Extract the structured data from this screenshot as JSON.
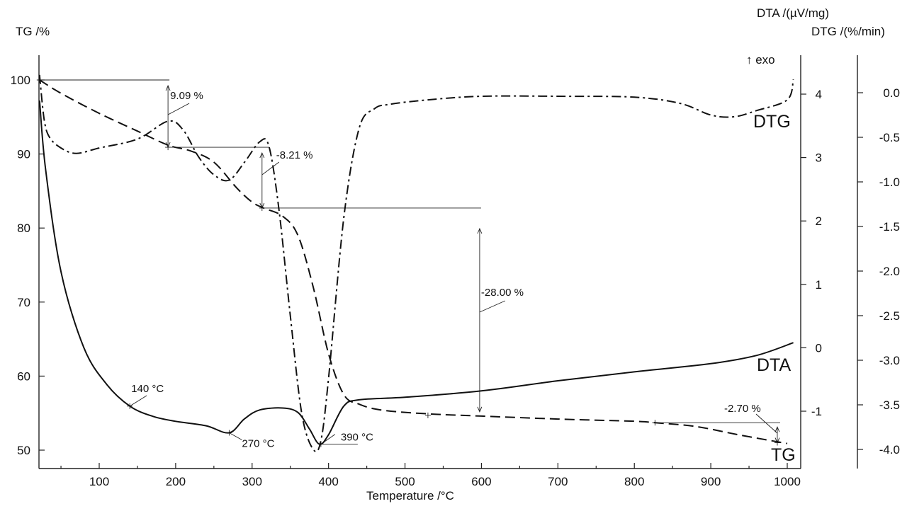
{
  "chart_data": {
    "type": "line",
    "xlabel": "Temperature /°C",
    "ylabel_left": "TG /%",
    "ylabel_right1": "DTA /(µV/mg)",
    "ylabel_right2": "DTG /(%/min)",
    "exo_label": "↑ exo",
    "xlim": [
      22,
      1010
    ],
    "ylim_left": [
      48,
      104
    ],
    "ylim_right1": [
      -1.8,
      4.6
    ],
    "ylim_right2": [
      -4.2,
      0.4
    ],
    "x_ticks": [
      "100",
      "200",
      "300",
      "400",
      "500",
      "600",
      "700",
      "800",
      "900",
      "1000"
    ],
    "y_left_ticks": [
      "50",
      "60",
      "70",
      "80",
      "90",
      "100"
    ],
    "y_right1_ticks": [
      "-1",
      "0",
      "1",
      "2",
      "3",
      "4"
    ],
    "y_right2_ticks": [
      "-4.0",
      "-3.5",
      "-3.0",
      "-2.5",
      "-2.0",
      "-1.5",
      "-1.0",
      "-0.5",
      "0.0"
    ],
    "series": [
      {
        "name": "TG",
        "axis": "left",
        "style": "dashed",
        "x": [
          22,
          50,
          100,
          150,
          190,
          220,
          250,
          280,
          300,
          315,
          340,
          360,
          380,
          400,
          420,
          440,
          470,
          530,
          600,
          700,
          800,
          827,
          880,
          940,
          1000
        ],
        "y": [
          100,
          98.2,
          95.5,
          93.1,
          91.2,
          90.4,
          88.9,
          85.4,
          83.5,
          82.7,
          81.6,
          79.0,
          72.0,
          63.0,
          57.5,
          56.2,
          55.4,
          54.9,
          54.6,
          54.2,
          53.9,
          53.7,
          53.2,
          52.0,
          50.9
        ]
      },
      {
        "name": "DTA",
        "axis": "right1",
        "style": "solid",
        "x": [
          22,
          30,
          50,
          80,
          110,
          140,
          170,
          200,
          240,
          270,
          290,
          310,
          340,
          360,
          375,
          388,
          400,
          420,
          440,
          500,
          600,
          700,
          800,
          900,
          960,
          1008
        ],
        "y": [
          3.9,
          2.8,
          1.2,
          0.0,
          -0.58,
          -0.92,
          -1.08,
          -1.16,
          -1.23,
          -1.34,
          -1.12,
          -0.98,
          -0.95,
          -1.02,
          -1.28,
          -1.52,
          -1.37,
          -0.92,
          -0.82,
          -0.78,
          -0.68,
          -0.52,
          -0.38,
          -0.25,
          -0.12,
          0.08
        ]
      },
      {
        "name": "DTG",
        "axis": "right2",
        "style": "dashdot",
        "x": [
          22,
          28,
          35,
          50,
          70,
          100,
          150,
          190,
          210,
          230,
          250,
          270,
          290,
          310,
          322,
          335,
          350,
          365,
          380,
          390,
          400,
          420,
          440,
          460,
          480,
          530,
          600,
          700,
          800,
          860,
          900,
          930,
          960,
          1000,
          1008
        ],
        "y": [
          0.2,
          -0.3,
          -0.5,
          -0.62,
          -0.68,
          -0.62,
          -0.52,
          -0.32,
          -0.42,
          -0.72,
          -0.92,
          -0.98,
          -0.78,
          -0.55,
          -0.6,
          -1.3,
          -2.5,
          -3.6,
          -4.0,
          -3.9,
          -3.2,
          -1.4,
          -0.4,
          -0.18,
          -0.13,
          -0.08,
          -0.04,
          -0.04,
          -0.05,
          -0.12,
          -0.25,
          -0.27,
          -0.2,
          -0.08,
          0.15
        ]
      }
    ],
    "mass_steps": [
      {
        "label": "9.09 %",
        "x": 190,
        "from": 100.0,
        "to": 90.91
      },
      {
        "label": "-8.21 %",
        "x": 313,
        "from": 90.91,
        "to": 82.7
      },
      {
        "label": "-28.00 %",
        "x": 530,
        "from": 82.7,
        "to": 54.7
      },
      {
        "label": "-2.70 %",
        "x": 987,
        "from": 53.7,
        "to": 51.0
      }
    ],
    "peaks": [
      {
        "label": "140 °C",
        "x": 140,
        "y": -0.92
      },
      {
        "label": "270 °C",
        "x": 270,
        "y": -1.34
      },
      {
        "label": "390 °C",
        "x": 390,
        "y": -1.52
      }
    ],
    "curve_labels": [
      "DTG",
      "DTA",
      "TG"
    ]
  }
}
